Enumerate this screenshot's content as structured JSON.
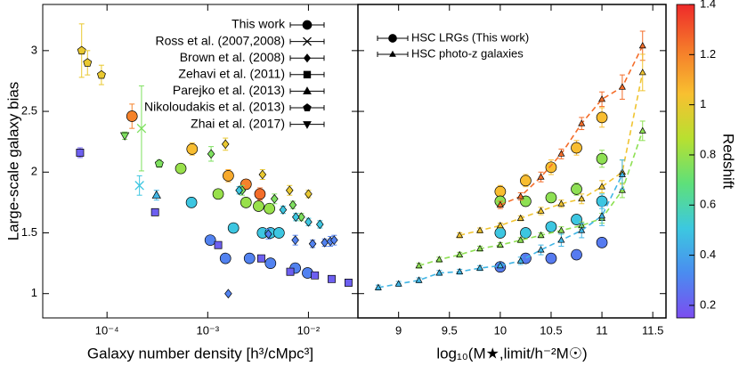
{
  "chart_data": [
    {
      "type": "scatter",
      "xlabel": "Galaxy number density [h³/cMpc³]",
      "ylabel": "Large-scale galaxy bias",
      "xscale": "log",
      "xlim": [
        2.3e-05,
        0.031
      ],
      "ylim": [
        0.8,
        3.38
      ],
      "xticks": [
        {
          "value": 0.0001,
          "label": "10⁻⁴"
        },
        {
          "value": 0.001,
          "label": "10⁻³"
        },
        {
          "value": 0.01,
          "label": "10⁻²"
        }
      ],
      "yticks": [
        1,
        1.5,
        2,
        2.5,
        3
      ],
      "show_ytick_labels": true,
      "legend": "upper right",
      "series": [
        {
          "name": "This work",
          "marker": "circle",
          "x": [
            0.000177,
            0.0007,
            0.0016,
            0.0024,
            0.0033,
            0.00054,
            0.00127,
            0.0024,
            0.0032,
            0.0041,
            0.00069,
            0.0018,
            0.0035,
            0.0042,
            0.0051,
            0.00106,
            0.0015,
            0.0026,
            0.0042,
            0.0074,
            0.0098
          ],
          "values": [
            2.46,
            2.19,
            1.97,
            1.9,
            1.82,
            2.03,
            1.82,
            1.75,
            1.72,
            1.7,
            1.75,
            1.54,
            1.5,
            1.5,
            1.5,
            1.44,
            1.29,
            1.29,
            1.25,
            1.21,
            1.17
          ],
          "errors": [
            0.1,
            0.05,
            0.05,
            0.04,
            0.05,
            0.03,
            0.03,
            0.03,
            0.03,
            0.03,
            0.04,
            0.03,
            0.03,
            0.03,
            0.03,
            0.03,
            0.02,
            0.02,
            0.02,
            0.02,
            0.02
          ],
          "z": [
            1.2,
            1.05,
            1.1,
            1.2,
            1.25,
            0.8,
            0.8,
            0.8,
            0.8,
            0.8,
            0.5,
            0.5,
            0.5,
            0.5,
            0.5,
            0.3,
            0.3,
            0.3,
            0.3,
            0.3,
            0.3
          ]
        },
        {
          "name": "Ross et al. (2007,2008)",
          "marker": "x",
          "x": [
            0.00021,
            0.00022
          ],
          "values": [
            1.89,
            2.36
          ],
          "errors": [
            0.08,
            0.35
          ],
          "z": [
            0.5,
            0.75
          ]
        },
        {
          "name": "Brown et al. (2008)",
          "marker": "diamond",
          "x": [
            0.0015,
            0.0035,
            0.0065,
            0.01,
            0.00108,
            0.0022,
            0.0046,
            0.007,
            0.0085,
            0.00205,
            0.0056,
            0.0075,
            0.01,
            0.013,
            0.0016,
            0.004,
            0.0074,
            0.011,
            0.0145,
            0.0165,
            0.018
          ],
          "values": [
            2.23,
            1.98,
            1.85,
            1.82,
            2.15,
            1.85,
            1.78,
            1.73,
            1.63,
            1.85,
            1.69,
            1.63,
            1.59,
            1.57,
            1.0,
            1.49,
            1.44,
            1.41,
            1.42,
            1.43,
            1.44
          ],
          "errors": [
            0.05,
            0.04,
            0.04,
            0.03,
            0.06,
            0.04,
            0.04,
            0.03,
            0.03,
            0.03,
            0.03,
            0.03,
            0.03,
            0.03,
            0.0,
            0.04,
            0.04,
            0.03,
            0.03,
            0.04,
            0.04
          ],
          "z": [
            1.0,
            1.0,
            1.0,
            1.0,
            0.75,
            0.75,
            0.75,
            0.75,
            0.75,
            0.5,
            0.5,
            0.5,
            0.5,
            0.5,
            0.3,
            0.3,
            0.3,
            0.3,
            0.3,
            0.3,
            0.3
          ]
        },
        {
          "name": "Zehavi et al. (2011)",
          "marker": "square",
          "x": [
            5.4e-05,
            0.0003,
            0.00127,
            0.0034,
            0.0066,
            0.0116,
            0.017,
            0.025
          ],
          "values": [
            2.16,
            1.67,
            1.4,
            1.29,
            1.18,
            1.15,
            1.12,
            1.09
          ],
          "errors": [
            0.04,
            0.02,
            0.02,
            0.02,
            0.02,
            0.02,
            0.02,
            0.02
          ],
          "z": [
            0.2,
            0.2,
            0.2,
            0.2,
            0.2,
            0.2,
            0.2,
            0.2
          ]
        },
        {
          "name": "Parejko et al. (2013)",
          "marker": "triangle",
          "x": [
            0.00031
          ],
          "values": [
            1.81
          ],
          "errors": [
            0.04
          ],
          "z": [
            0.45
          ]
        },
        {
          "name": "Nikoloudakis et al. (2013)",
          "marker": "pentagon",
          "x": [
            5.6e-05,
            6.4e-05,
            8.8e-05,
            0.00033
          ],
          "values": [
            3.0,
            2.9,
            2.8,
            2.07
          ],
          "errors": [
            0.22,
            0.1,
            0.08,
            0.03
          ],
          "z": [
            1.0,
            1.0,
            1.0,
            0.75
          ]
        },
        {
          "name": "Zhai et al. (2017)",
          "marker": "invtriangle",
          "x": [
            0.00015
          ],
          "values": [
            2.3
          ],
          "errors": [
            0.03
          ],
          "z": [
            0.75
          ]
        }
      ]
    },
    {
      "type": "scatter",
      "xlabel": "log₁₀(M★,limit/h⁻²M☉)",
      "xlim": [
        8.6,
        11.63
      ],
      "ylim": [
        0.8,
        3.38
      ],
      "xticks": [
        9,
        9.5,
        10,
        10.5,
        11,
        11.5
      ],
      "yticks": [
        1,
        1.5,
        2,
        2.5,
        3
      ],
      "show_ytick_labels": false,
      "legend": [
        {
          "name": "HSC LRGs (This work)",
          "marker": "circle"
        },
        {
          "name": "HSC photo-z galaxies",
          "marker": "triangle"
        }
      ],
      "series": [
        {
          "marker": "circle",
          "z": 1.05,
          "x": [
            10,
            10.25,
            10.5,
            10.75,
            11
          ],
          "values": [
            1.84,
            1.93,
            2.04,
            2.2,
            2.45
          ],
          "errors": [
            0.05,
            0.05,
            0.06,
            0.06,
            0.08
          ]
        },
        {
          "marker": "circle",
          "z": 0.78,
          "x": [
            10,
            10.25,
            10.5,
            10.75,
            11
          ],
          "values": [
            1.76,
            1.76,
            1.79,
            1.86,
            2.11
          ],
          "errors": [
            0.04,
            0.04,
            0.04,
            0.05,
            0.07
          ]
        },
        {
          "marker": "circle",
          "z": 0.5,
          "x": [
            10,
            10.25,
            10.5,
            10.75,
            11
          ],
          "values": [
            1.5,
            1.5,
            1.55,
            1.61,
            1.76
          ],
          "errors": [
            0.03,
            0.03,
            0.03,
            0.04,
            0.06
          ]
        },
        {
          "marker": "circle",
          "z": 0.28,
          "x": [
            10,
            10.25,
            10.5,
            10.75,
            11
          ],
          "values": [
            1.22,
            1.29,
            1.29,
            1.32,
            1.42
          ],
          "errors": [
            0.02,
            0.02,
            0.02,
            0.02,
            0.03
          ]
        },
        {
          "marker": "triangle",
          "line": "dashed",
          "z": 1.25,
          "x": [
            10,
            10.2,
            10.4,
            10.6,
            10.8,
            11,
            11.2,
            11.4
          ],
          "values": [
            1.73,
            1.8,
            1.96,
            2.15,
            2.4,
            2.6,
            2.7,
            3.04
          ],
          "errors": [
            0.03,
            0.03,
            0.04,
            0.04,
            0.05,
            0.06,
            0.1,
            0.12
          ]
        },
        {
          "marker": "triangle",
          "line": "dashed",
          "z": 1.02,
          "x": [
            9.6,
            9.8,
            10,
            10.2,
            10.4,
            10.6,
            10.8,
            11,
            11.2,
            11.4
          ],
          "values": [
            1.48,
            1.52,
            1.56,
            1.62,
            1.68,
            1.74,
            1.78,
            1.88,
            2.0,
            2.82
          ],
          "errors": [
            0.02,
            0.02,
            0.02,
            0.02,
            0.03,
            0.03,
            0.04,
            0.05,
            0.1,
            0.15
          ]
        },
        {
          "marker": "triangle",
          "line": "dashed",
          "z": 0.78,
          "x": [
            9.2,
            9.4,
            9.6,
            9.8,
            10,
            10.2,
            10.4,
            10.6,
            10.8,
            11,
            11.2,
            11.4
          ],
          "values": [
            1.23,
            1.28,
            1.32,
            1.37,
            1.4,
            1.44,
            1.48,
            1.52,
            1.56,
            1.62,
            1.85,
            2.34
          ],
          "errors": [
            0.02,
            0.02,
            0.02,
            0.02,
            0.02,
            0.02,
            0.02,
            0.03,
            0.03,
            0.04,
            0.06,
            0.08
          ]
        },
        {
          "marker": "triangle",
          "line": "dashed",
          "z": 0.45,
          "x": [
            8.8,
            9,
            9.2,
            9.4,
            9.6,
            9.8,
            10,
            10.2,
            10.4,
            10.6,
            10.8,
            11,
            11.2
          ],
          "values": [
            1.05,
            1.08,
            1.11,
            1.17,
            1.18,
            1.21,
            1.23,
            1.27,
            1.36,
            1.44,
            1.52,
            1.64,
            1.98
          ],
          "errors": [
            0.02,
            0.02,
            0.02,
            0.02,
            0.02,
            0.02,
            0.02,
            0.03,
            0.04,
            0.05,
            0.06,
            0.08,
            0.12
          ]
        }
      ]
    }
  ],
  "colorbar": {
    "label": "Redshift",
    "lim": [
      0.15,
      1.4
    ],
    "ticks": [
      0.2,
      0.4,
      0.6,
      0.8,
      1,
      1.2,
      1.4
    ],
    "colors": [
      "#7b4df0",
      "#4a8cf0",
      "#3cc8e0",
      "#5ee07a",
      "#b8e030",
      "#f8c030",
      "#f57a2a",
      "#ee2a2a"
    ]
  }
}
